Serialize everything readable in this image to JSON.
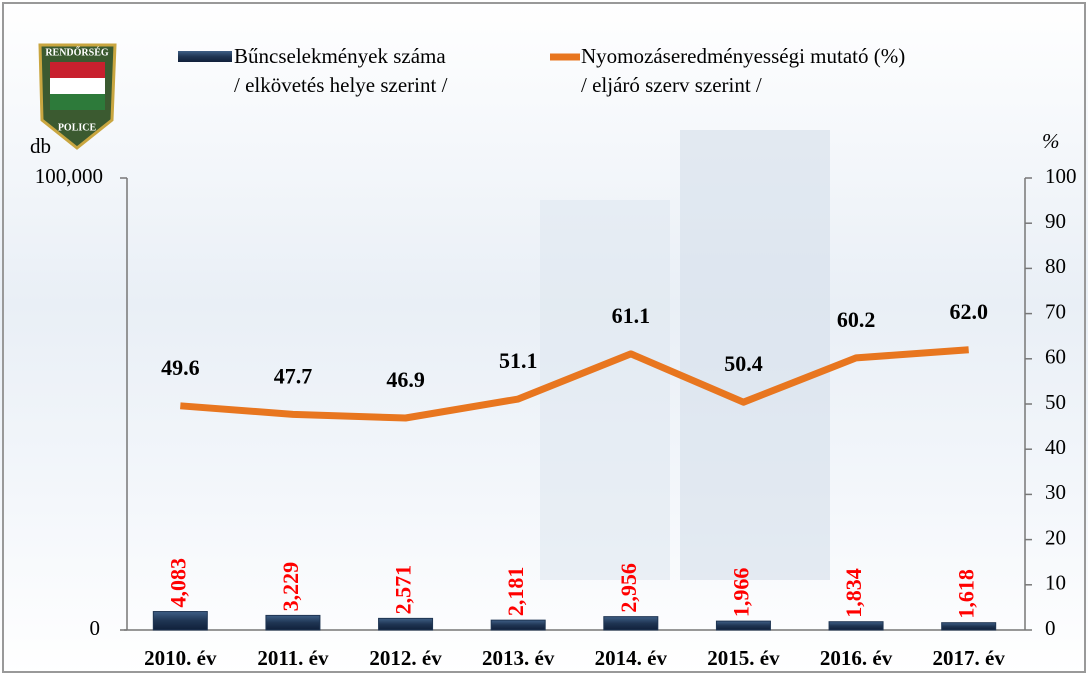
{
  "logo": {
    "top": "RENDŐRSÉG",
    "bottom": "POLICE"
  },
  "chart_data": {
    "type": "bar-line",
    "ylabel": "db",
    "y2label": "%",
    "categories": [
      "2010. év",
      "2011. év",
      "2012. év",
      "2013. év",
      "2014. év",
      "2015. év",
      "2016. év",
      "2017. év"
    ],
    "series": [
      {
        "name": "Bűncselekmények száma\n/ elkövetés helye szerint /",
        "type": "bar",
        "color": "#1f3553",
        "values": [
          4083,
          3229,
          2571,
          2181,
          2956,
          1966,
          1834,
          1618
        ],
        "value_labels": [
          "4,083",
          "3,229",
          "2,571",
          "2,181",
          "2,956",
          "1,966",
          "1,834",
          "1,618"
        ],
        "label_color": "#ff0000"
      },
      {
        "name": "Nyomozáseredményességi mutató (%)\n/ eljáró szerv szerint /",
        "type": "line",
        "axis": "y2",
        "color": "#e8761f",
        "values": [
          49.6,
          47.7,
          46.9,
          51.1,
          61.1,
          50.4,
          60.2,
          62.0
        ],
        "value_labels": [
          "49.6",
          "47.7",
          "46.9",
          "51.1",
          "61.1",
          "50.4",
          "60.2",
          "62.0"
        ],
        "label_color": "#000000"
      }
    ],
    "ylim": [
      0,
      100000
    ],
    "yticks": [
      0,
      {
        "value": 100000,
        "label": "100,000"
      }
    ],
    "y2lim": [
      0,
      100
    ],
    "y2ticks": [
      0,
      10,
      20,
      30,
      40,
      50,
      60,
      70,
      80,
      90,
      100
    ],
    "grid": false
  }
}
